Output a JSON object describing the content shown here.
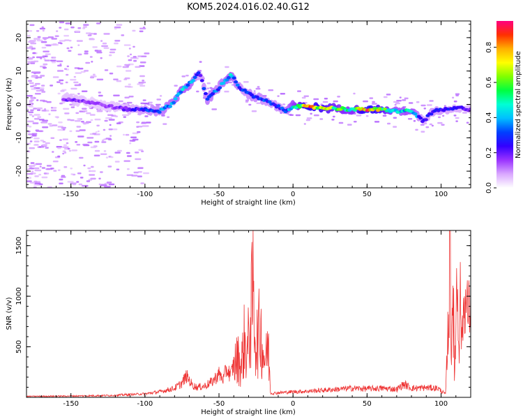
{
  "title": "KOM5.2024.016.02.40.G12",
  "chart_data": [
    {
      "type": "heatmap",
      "xlabel": "Height of straight line (km)",
      "ylabel": "Frequency (Hz)",
      "xlim": [
        -180,
        120
      ],
      "ylim": [
        -25,
        25
      ],
      "x_ticks": [
        "-150",
        "-100",
        "-50",
        "0",
        "50",
        "100"
      ],
      "y_ticks": [
        "-20",
        "-10",
        "0",
        "10",
        "20"
      ],
      "colorbar": {
        "label": "Normalized spectral amplitude",
        "range": [
          0,
          0.95
        ],
        "ticks": [
          "0.0",
          "0.2",
          "0.4",
          "0.6",
          "0.8"
        ],
        "colors": [
          "#ffffff",
          "#d9a7ff",
          "#9a33ff",
          "#3300ff",
          "#0040ff",
          "#00bfff",
          "#00ffd5",
          "#00ff40",
          "#80ff00",
          "#ffff00",
          "#ffb000",
          "#ff3000",
          "#ff0080"
        ]
      },
      "ridge": [
        {
          "x": -180,
          "y": 1.5,
          "amp": 0.1
        },
        {
          "x": -165,
          "y": 2.0,
          "amp": 0.15
        },
        {
          "x": -150,
          "y": 1.5,
          "amp": 0.2
        },
        {
          "x": -135,
          "y": 0.5,
          "amp": 0.15
        },
        {
          "x": -120,
          "y": -1.0,
          "amp": 0.18
        },
        {
          "x": -110,
          "y": -1.5,
          "amp": 0.22
        },
        {
          "x": -100,
          "y": -1.5,
          "amp": 0.3
        },
        {
          "x": -90,
          "y": -2.0,
          "amp": 0.35
        },
        {
          "x": -82,
          "y": 0.0,
          "amp": 0.4
        },
        {
          "x": -75,
          "y": 4.5,
          "amp": 0.45
        },
        {
          "x": -68,
          "y": 7.0,
          "amp": 0.4
        },
        {
          "x": -63,
          "y": 9.5,
          "amp": 0.25
        },
        {
          "x": -58,
          "y": 1.5,
          "amp": 0.38
        },
        {
          "x": -50,
          "y": 5.0,
          "amp": 0.35
        },
        {
          "x": -42,
          "y": 9.0,
          "amp": 0.45
        },
        {
          "x": -35,
          "y": 4.5,
          "amp": 0.3
        },
        {
          "x": -25,
          "y": 2.0,
          "amp": 0.35
        },
        {
          "x": -15,
          "y": 0.5,
          "amp": 0.3
        },
        {
          "x": -5,
          "y": -2.0,
          "amp": 0.32
        },
        {
          "x": 0,
          "y": -0.5,
          "amp": 0.5
        },
        {
          "x": 10,
          "y": -0.8,
          "amp": 0.85
        },
        {
          "x": 20,
          "y": -1.0,
          "amp": 0.75
        },
        {
          "x": 30,
          "y": -1.2,
          "amp": 0.6
        },
        {
          "x": 40,
          "y": -1.5,
          "amp": 0.55
        },
        {
          "x": 50,
          "y": -1.5,
          "amp": 0.9
        },
        {
          "x": 60,
          "y": -1.6,
          "amp": 0.7
        },
        {
          "x": 70,
          "y": -2.0,
          "amp": 0.45
        },
        {
          "x": 80,
          "y": -2.0,
          "amp": 0.5
        },
        {
          "x": 88,
          "y": -5.0,
          "amp": 0.25
        },
        {
          "x": 95,
          "y": -2.0,
          "amp": 0.3
        },
        {
          "x": 105,
          "y": -1.5,
          "amp": 0.28
        },
        {
          "x": 112,
          "y": -1.0,
          "amp": 0.25
        },
        {
          "x": 120,
          "y": -1.5,
          "amp": 0.2
        }
      ]
    },
    {
      "type": "line",
      "xlabel": "Height of straight line (km)",
      "ylabel": "SNR (v/v)",
      "xlim": [
        -180,
        120
      ],
      "ylim": [
        0,
        1650
      ],
      "x_ticks": [
        "-150",
        "-100",
        "-50",
        "0",
        "50",
        "100"
      ],
      "y_ticks": [
        "500",
        "1000",
        "1500"
      ],
      "line_color": "#ee3333",
      "series": [
        {
          "x": [
            -180,
            -160,
            -140,
            -120,
            -110,
            -100,
            -90,
            -80,
            -75,
            -72,
            -70,
            -68,
            -65,
            -60,
            -55,
            -50,
            -47,
            -45,
            -42,
            -40,
            -37,
            -35,
            -33,
            -31,
            -29,
            -27,
            -25,
            -22,
            -20,
            -18,
            -17,
            -15,
            -10,
            0,
            10,
            20,
            30,
            40,
            50,
            60,
            70,
            75,
            80,
            90,
            98,
            103,
            105,
            106,
            107,
            108,
            109,
            110,
            111,
            112,
            113,
            114,
            115,
            116,
            117,
            118,
            120
          ],
          "y": [
            10,
            12,
            15,
            20,
            28,
            35,
            55,
            90,
            140,
            210,
            170,
            120,
            100,
            110,
            150,
            230,
            180,
            280,
            220,
            330,
            380,
            300,
            550,
            420,
            720,
            1030,
            520,
            690,
            420,
            390,
            540,
            40,
            45,
            55,
            60,
            70,
            80,
            90,
            85,
            90,
            80,
            130,
            90,
            95,
            90,
            30,
            780,
            1620,
            500,
            1250,
            130,
            880,
            1120,
            650,
            1050,
            520,
            870,
            950,
            900,
            880,
            870
          ]
        }
      ]
    }
  ]
}
